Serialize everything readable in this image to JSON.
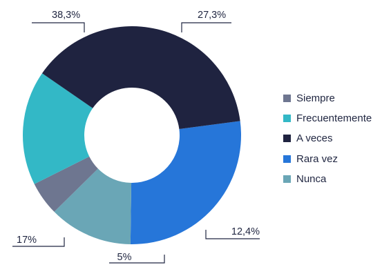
{
  "chart_data": {
    "type": "pie",
    "subtype": "donut",
    "title": "",
    "legend_position": "right",
    "slices": [
      {
        "name": "Siempre",
        "value": 5,
        "label": "5%",
        "color": "#6e7690"
      },
      {
        "name": "Frecuentemente",
        "value": 17,
        "label": "17%",
        "color": "#33b8c6"
      },
      {
        "name": "A veces",
        "value": 38.3,
        "label": "38,3%",
        "color": "#1f2340"
      },
      {
        "name": "Rara vez",
        "value": 27.3,
        "label": "27,3%",
        "color": "#2676d9"
      },
      {
        "name": "Nunca",
        "value": 12.4,
        "label": "12,4%",
        "color": "#6aa6b6"
      }
    ],
    "draw_order": [
      "Rara vez",
      "Nunca",
      "Siempre",
      "Frecuentemente",
      "A veces"
    ]
  }
}
